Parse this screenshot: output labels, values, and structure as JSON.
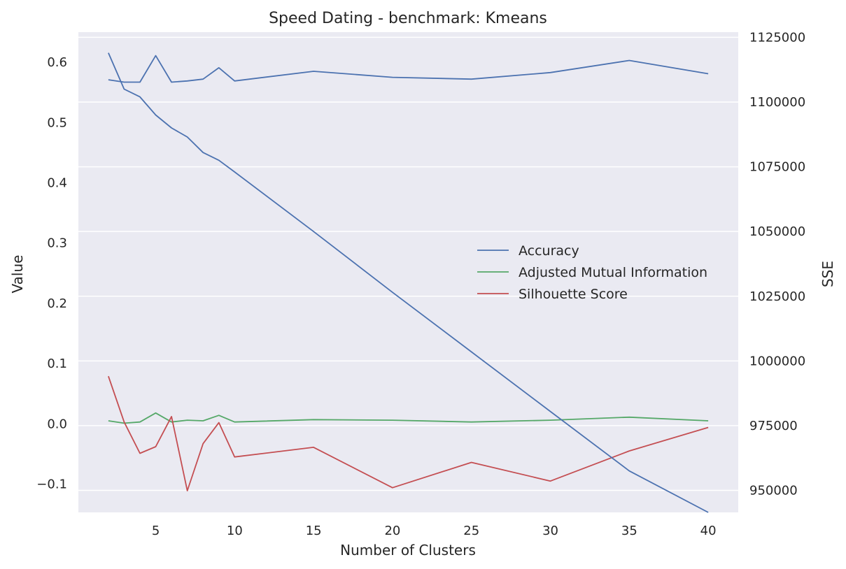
{
  "chart_data": {
    "type": "line",
    "title": "Speed Dating - benchmark: Kmeans",
    "xlabel": "Number of Clusters",
    "ylabel": "Value",
    "y2label": "SSE",
    "x": [
      2,
      3,
      4,
      5,
      6,
      7,
      8,
      9,
      10,
      15,
      20,
      25,
      30,
      35,
      40
    ],
    "xticks": [
      5,
      10,
      15,
      20,
      25,
      30,
      35,
      40
    ],
    "xlim": [
      0.1,
      41.9
    ],
    "yticks": [
      0.6,
      0.5,
      0.4,
      0.3,
      0.2,
      0.1,
      0.0,
      -0.1
    ],
    "ytick_labels": [
      "0.6",
      "0.5",
      "0.4",
      "0.3",
      "0.2",
      "0.1",
      "0.0",
      "−0.1"
    ],
    "ylim": [
      -0.147,
      0.65
    ],
    "y2ticks": [
      1125000,
      1100000,
      1075000,
      1050000,
      1025000,
      1000000,
      975000,
      950000
    ],
    "y2lim": [
      941500,
      1127000
    ],
    "grid": true,
    "legend_position": "center-right",
    "series": [
      {
        "name": "Accuracy",
        "axis": "left",
        "color": "#4c72b0",
        "values": [
          0.571,
          0.567,
          0.567,
          0.611,
          0.567,
          0.569,
          0.572,
          0.591,
          0.569,
          0.585,
          0.575,
          0.572,
          0.583,
          0.603,
          0.581
        ]
      },
      {
        "name": "Adjusted Mutual Information",
        "axis": "left",
        "color": "#55a868",
        "values": [
          0.005,
          0.001,
          0.003,
          0.018,
          0.003,
          0.006,
          0.005,
          0.014,
          0.003,
          0.007,
          0.006,
          0.003,
          0.006,
          0.011,
          0.005
        ]
      },
      {
        "name": "Silhouette Score",
        "axis": "left",
        "color": "#c44e52",
        "values": [
          0.079,
          0.003,
          -0.049,
          -0.038,
          0.012,
          -0.111,
          -0.033,
          0.002,
          -0.055,
          -0.039,
          -0.106,
          -0.064,
          -0.095,
          -0.045,
          -0.006
        ]
      },
      {
        "name": "SSE",
        "axis": "right",
        "color": "#4c72b0",
        "values": [
          1119000,
          1105000,
          1102000,
          1095000,
          1090000,
          1086500,
          1080500,
          1077500,
          1073000,
          1050000,
          1026500,
          1003500,
          980500,
          957500,
          941500
        ]
      }
    ]
  }
}
